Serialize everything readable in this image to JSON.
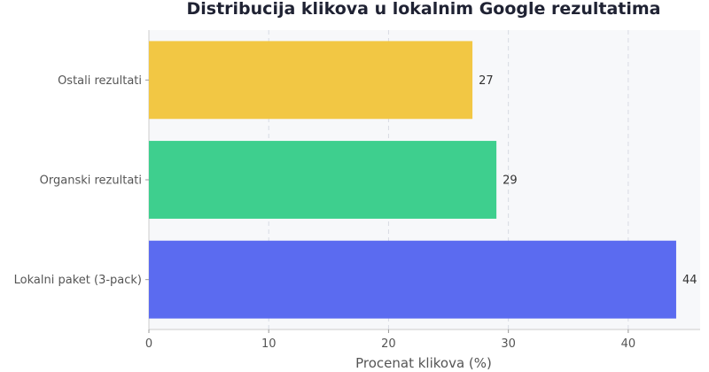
{
  "chart_data": {
    "type": "bar",
    "orientation": "horizontal",
    "title": "Distribucija klikova u lokalnim Google rezultatima",
    "xlabel": "Procenat klikova (%)",
    "ylabel": "",
    "categories": [
      "Lokalni paket (3-pack)",
      "Organski rezultati",
      "Ostali rezultati"
    ],
    "values": [
      44,
      29,
      27
    ],
    "value_labels": [
      "44",
      "29",
      "27"
    ],
    "colors": [
      "#5b6bf0",
      "#3ecf8e",
      "#f2c744"
    ],
    "xlim": [
      0,
      46
    ],
    "xticks": [
      0,
      10,
      20,
      30,
      40
    ],
    "xtick_labels": [
      "0",
      "10",
      "20",
      "30",
      "40"
    ],
    "grid": true
  }
}
